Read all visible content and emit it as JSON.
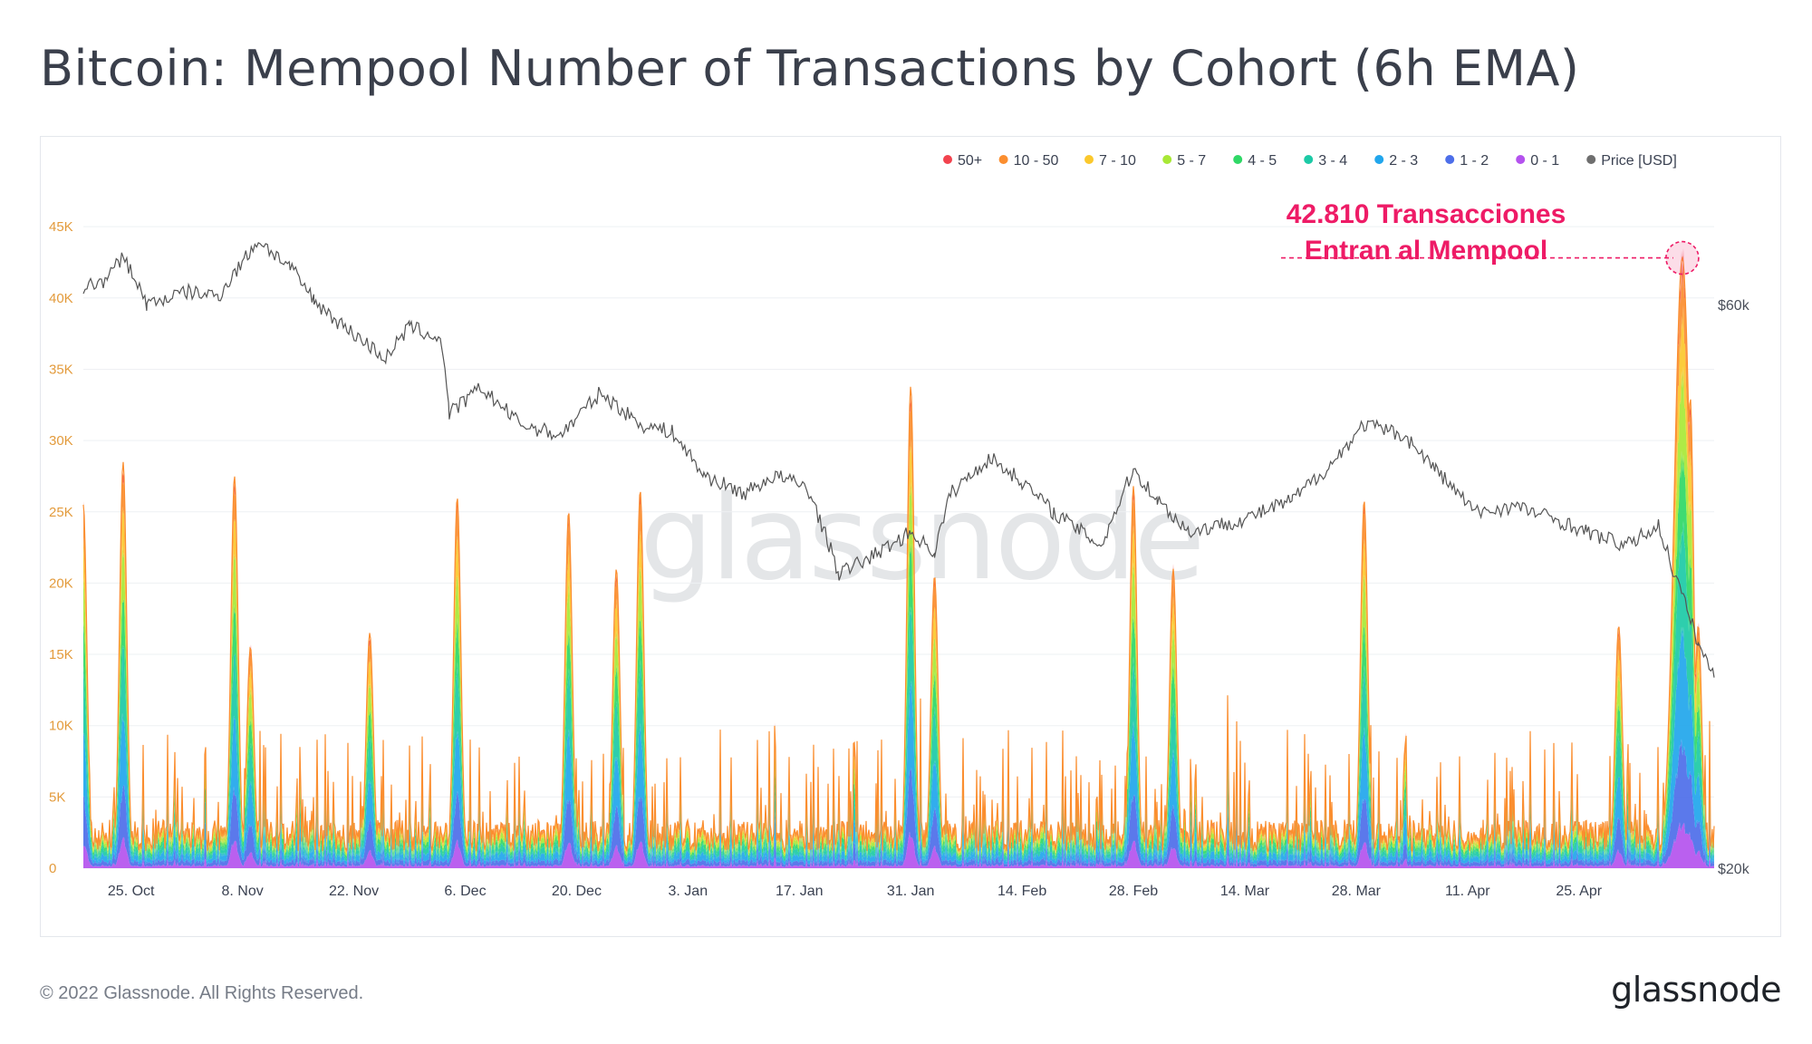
{
  "title": "Bitcoin: Mempool Number of Transactions by Cohort (6h EMA)",
  "footer": {
    "copyright": "© 2022 Glassnode. All Rights Reserved.",
    "logo": "glassnode"
  },
  "watermark": "glassnode",
  "colors": {
    "50+": "#f2434e",
    "10 - 50": "#fb8e2f",
    "7 - 10": "#fbc82c",
    "5 - 7": "#a8e836",
    "4 - 5": "#2fd866",
    "3 - 4": "#1ccaa6",
    "2 - 3": "#21a6ec",
    "1 - 2": "#4d6ee9",
    "0 - 1": "#b452ee",
    "Price [USD]": "#6e6e6e",
    "annotation": "#ee1b66"
  },
  "chart_data": {
    "type": "area",
    "legend_position": "top-right",
    "legend": [
      "50+",
      "10 - 50",
      "7 - 10",
      "5 - 7",
      "4 - 5",
      "3 - 4",
      "2 - 3",
      "1 - 2",
      "0 - 1",
      "Price [USD]"
    ],
    "x_tick_labels": [
      "25. Oct",
      "8. Nov",
      "22. Nov",
      "6. Dec",
      "20. Dec",
      "3. Jan",
      "17. Jan",
      "31. Jan",
      "14. Feb",
      "28. Feb",
      "14. Mar",
      "28. Mar",
      "11. Apr",
      "25. Apr"
    ],
    "x_range": [
      "2021-10-19",
      "2022-05-12"
    ],
    "y_left": {
      "ticks": [
        "0",
        "5K",
        "10K",
        "15K",
        "20K",
        "25K",
        "30K",
        "35K",
        "40K",
        "45K"
      ],
      "range": [
        0,
        45000
      ]
    },
    "y_right": {
      "ticks": [
        "$20k",
        "$60k"
      ],
      "scale": "log"
    },
    "cohorts": [
      "0 - 1",
      "1 - 2",
      "2 - 3",
      "3 - 4",
      "4 - 5",
      "5 - 7",
      "7 - 10",
      "10 - 50",
      "50+"
    ],
    "transaction_peaks": [
      {
        "date": "2021-10-19",
        "total": 25500
      },
      {
        "date": "2021-10-24",
        "total": 28500
      },
      {
        "date": "2021-11-07",
        "total": 27500
      },
      {
        "date": "2021-11-09",
        "total": 15500
      },
      {
        "date": "2021-11-24",
        "total": 16500
      },
      {
        "date": "2021-12-05",
        "total": 26000
      },
      {
        "date": "2021-12-19",
        "total": 25000
      },
      {
        "date": "2021-12-25",
        "total": 21000
      },
      {
        "date": "2021-12-28",
        "total": 26500
      },
      {
        "date": "2022-01-31",
        "total": 33800
      },
      {
        "date": "2022-02-03",
        "total": 20500
      },
      {
        "date": "2022-02-28",
        "total": 26800
      },
      {
        "date": "2022-03-05",
        "total": 21000
      },
      {
        "date": "2022-03-29",
        "total": 25800
      },
      {
        "date": "2022-04-30",
        "total": 17000
      },
      {
        "date": "2022-05-08",
        "total": 42810
      },
      {
        "date": "2022-05-09",
        "total": 33000
      },
      {
        "date": "2022-05-10",
        "total": 17000
      }
    ],
    "price_usd": [
      {
        "date": "2021-10-19",
        "price": 62000
      },
      {
        "date": "2021-10-22",
        "price": 63000
      },
      {
        "date": "2021-10-24",
        "price": 66000
      },
      {
        "date": "2021-10-27",
        "price": 60000
      },
      {
        "date": "2021-11-01",
        "price": 61500
      },
      {
        "date": "2021-11-05",
        "price": 61000
      },
      {
        "date": "2021-11-10",
        "price": 68000
      },
      {
        "date": "2021-11-14",
        "price": 64500
      },
      {
        "date": "2021-11-17",
        "price": 60500
      },
      {
        "date": "2021-11-20",
        "price": 58000
      },
      {
        "date": "2021-11-26",
        "price": 54000
      },
      {
        "date": "2021-11-29",
        "price": 57500
      },
      {
        "date": "2021-12-03",
        "price": 56000
      },
      {
        "date": "2021-12-04",
        "price": 48500
      },
      {
        "date": "2021-12-08",
        "price": 51000
      },
      {
        "date": "2021-12-13",
        "price": 47500
      },
      {
        "date": "2021-12-18",
        "price": 46500
      },
      {
        "date": "2021-12-23",
        "price": 50500
      },
      {
        "date": "2021-12-28",
        "price": 47500
      },
      {
        "date": "2022-01-01",
        "price": 46800
      },
      {
        "date": "2022-01-05",
        "price": 43000
      },
      {
        "date": "2022-01-10",
        "price": 41500
      },
      {
        "date": "2022-01-14",
        "price": 43000
      },
      {
        "date": "2022-01-18",
        "price": 42000
      },
      {
        "date": "2022-01-22",
        "price": 35500
      },
      {
        "date": "2022-01-27",
        "price": 37000
      },
      {
        "date": "2022-01-31",
        "price": 38500
      },
      {
        "date": "2022-02-03",
        "price": 37000
      },
      {
        "date": "2022-02-05",
        "price": 41500
      },
      {
        "date": "2022-02-10",
        "price": 44500
      },
      {
        "date": "2022-02-14",
        "price": 42500
      },
      {
        "date": "2022-02-18",
        "price": 40000
      },
      {
        "date": "2022-02-24",
        "price": 37500
      },
      {
        "date": "2022-02-28",
        "price": 43500
      },
      {
        "date": "2022-03-03",
        "price": 41000
      },
      {
        "date": "2022-03-07",
        "price": 38500
      },
      {
        "date": "2022-03-14",
        "price": 39500
      },
      {
        "date": "2022-03-20",
        "price": 41000
      },
      {
        "date": "2022-03-25",
        "price": 44000
      },
      {
        "date": "2022-03-29",
        "price": 47500
      },
      {
        "date": "2022-04-03",
        "price": 46500
      },
      {
        "date": "2022-04-07",
        "price": 43500
      },
      {
        "date": "2022-04-12",
        "price": 40000
      },
      {
        "date": "2022-04-17",
        "price": 40500
      },
      {
        "date": "2022-04-22",
        "price": 39500
      },
      {
        "date": "2022-04-26",
        "price": 38500
      },
      {
        "date": "2022-05-01",
        "price": 37500
      },
      {
        "date": "2022-05-05",
        "price": 39000
      },
      {
        "date": "2022-05-07",
        "price": 35500
      },
      {
        "date": "2022-05-10",
        "price": 31000
      },
      {
        "date": "2022-05-12",
        "price": 29000
      }
    ],
    "annotation": {
      "text_line1": "42.810 Transacciones",
      "text_line2": "Entran al Mempool",
      "date": "2022-05-08",
      "value": 42810
    }
  }
}
